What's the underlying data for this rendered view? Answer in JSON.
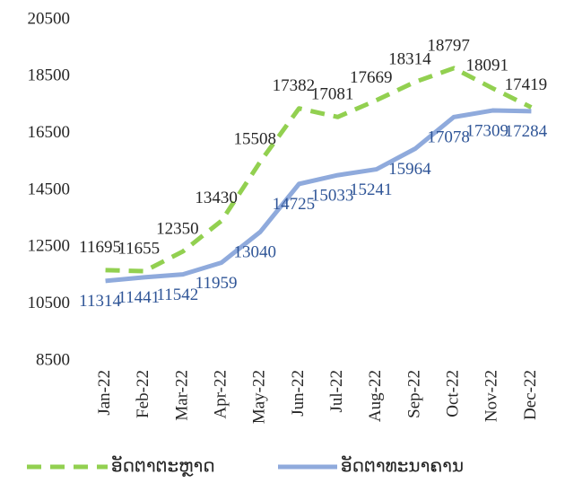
{
  "chart_data": {
    "type": "line",
    "categories": [
      "Jan-22",
      "Feb-22",
      "Mar-22",
      "Apr-22",
      "May-22",
      "Jun-22",
      "Jul-22",
      "Aug-22",
      "Sep-22",
      "Oct-22",
      "Nov-22",
      "Dec-22"
    ],
    "series": [
      {
        "name": "ອັດຕາຕະຫຼາດ",
        "color": "#92d050",
        "dashed": true,
        "values": [
          11695,
          11655,
          12350,
          13430,
          15508,
          17382,
          17081,
          17669,
          18314,
          18797,
          18091,
          17419
        ]
      },
      {
        "name": "ອັດຕາທະນາຄານ",
        "color": "#8faadc",
        "dashed": false,
        "values": [
          11314,
          11441,
          11542,
          11959,
          13040,
          14725,
          15033,
          15241,
          15964,
          17078,
          17309,
          17284
        ]
      }
    ],
    "ylim": [
      8500,
      20500
    ],
    "yticks": [
      8500,
      10500,
      12500,
      14500,
      16500,
      18500,
      20500
    ],
    "grid": false,
    "legend": "bottom"
  }
}
